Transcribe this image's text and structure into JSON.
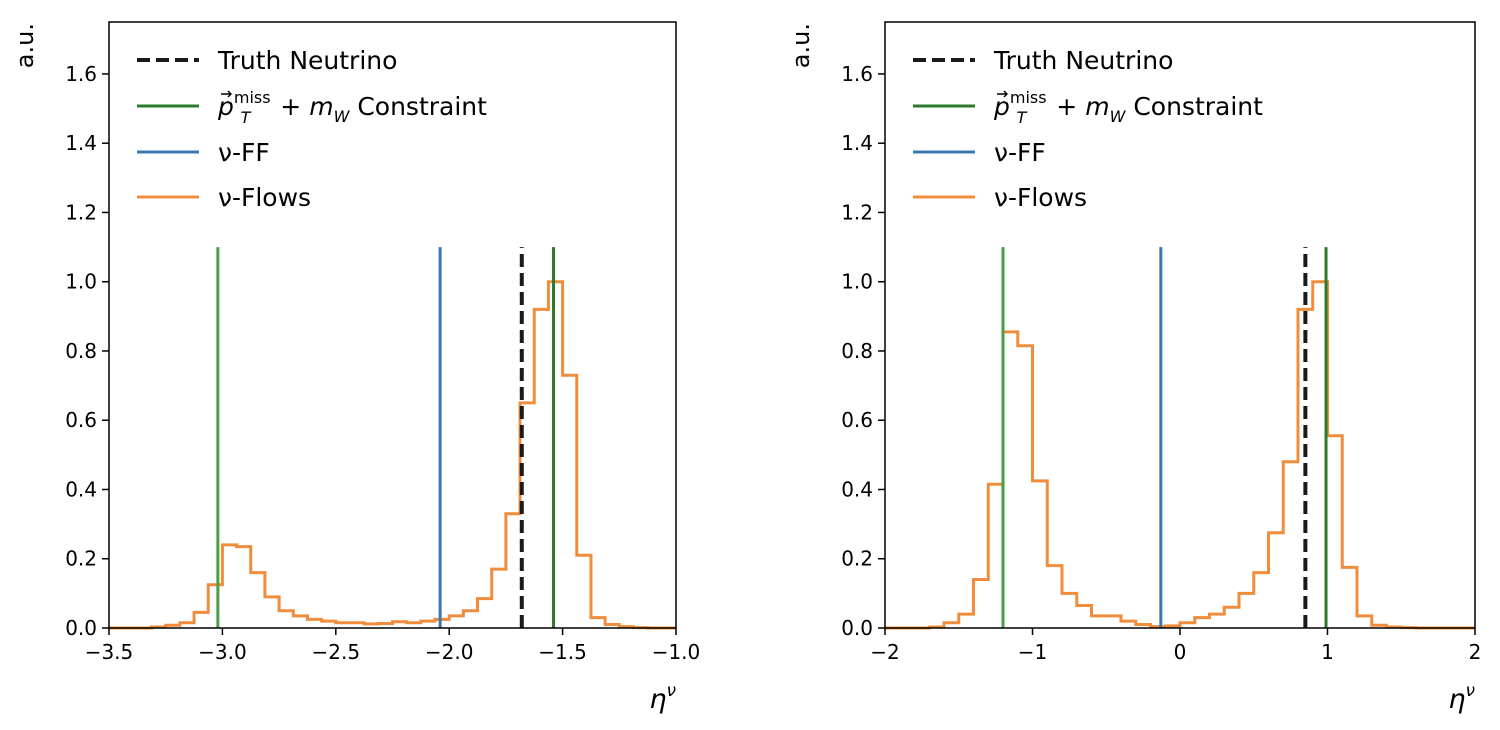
{
  "chart_data": [
    {
      "type": "line",
      "xlabel": "η",
      "xlabel_sup": "ν",
      "ylabel": "a.u.",
      "xlim": [
        -3.5,
        -1.0
      ],
      "ylim": [
        0,
        1.75
      ],
      "xticks": [
        -3.5,
        -3.0,
        -2.5,
        -2.0,
        -1.5,
        -1.0
      ],
      "xtick_labels": [
        "−3.5",
        "−3.0",
        "−2.5",
        "−2.0",
        "−1.5",
        "−1.0"
      ],
      "yticks": [
        0,
        0.2,
        0.4,
        0.6,
        0.8,
        1.0,
        1.2,
        1.4,
        1.6
      ],
      "ytick_labels": [
        "0.0",
        "0.2",
        "0.4",
        "0.6",
        "0.8",
        "1.0",
        "1.2",
        "1.4",
        "1.6"
      ],
      "legend_position": "top-left",
      "grid": false,
      "vlines": [
        {
          "legend_index": 1,
          "x": -3.02,
          "color": "#4a9e45",
          "ymax": 1.1
        },
        {
          "legend_index": 1,
          "x": -1.54,
          "color": "#2c7a2c",
          "ymax": 1.1
        },
        {
          "legend_index": 2,
          "x": -2.04,
          "color": "#3a78b0",
          "ymax": 1.1
        },
        {
          "legend_index": 0,
          "x": -1.68,
          "color": "#1a1a1a",
          "ymax": 1.1,
          "dashed": true
        }
      ],
      "histogram": {
        "legend_index": 3,
        "color": "#f08d3c",
        "bin_start": -3.5,
        "bin_width": 0.0625,
        "values": [
          0.0,
          0.0,
          0.0,
          0.003,
          0.008,
          0.015,
          0.045,
          0.125,
          0.24,
          0.235,
          0.16,
          0.09,
          0.05,
          0.035,
          0.025,
          0.02,
          0.015,
          0.015,
          0.012,
          0.013,
          0.018,
          0.015,
          0.02,
          0.025,
          0.035,
          0.05,
          0.085,
          0.17,
          0.33,
          0.65,
          0.92,
          1.0,
          0.73,
          0.21,
          0.03,
          0.01,
          0.004,
          0.001,
          0.0,
          0.0
        ]
      }
    },
    {
      "type": "line",
      "xlabel": "η",
      "xlabel_sup": "ν",
      "ylabel": "a.u.",
      "xlim": [
        -2,
        2
      ],
      "ylim": [
        0,
        1.75
      ],
      "xticks": [
        -2,
        -1,
        0,
        1,
        2
      ],
      "xtick_labels": [
        "−2",
        "−1",
        "0",
        "1",
        "2"
      ],
      "yticks": [
        0,
        0.2,
        0.4,
        0.6,
        0.8,
        1.0,
        1.2,
        1.4,
        1.6
      ],
      "ytick_labels": [
        "0.0",
        "0.2",
        "0.4",
        "0.6",
        "0.8",
        "1.0",
        "1.2",
        "1.4",
        "1.6"
      ],
      "legend_position": "top-left",
      "grid": false,
      "vlines": [
        {
          "legend_index": 1,
          "x": -1.2,
          "color": "#4a9e45",
          "ymax": 1.1
        },
        {
          "legend_index": 1,
          "x": 0.99,
          "color": "#2c7a2c",
          "ymax": 1.1
        },
        {
          "legend_index": 2,
          "x": -0.13,
          "color": "#3a78b0",
          "ymax": 1.1
        },
        {
          "legend_index": 0,
          "x": 0.85,
          "color": "#1a1a1a",
          "ymax": 1.1,
          "dashed": true
        }
      ],
      "histogram": {
        "legend_index": 3,
        "color": "#f08d3c",
        "bin_start": -2.0,
        "bin_width": 0.1,
        "values": [
          0.0,
          0.0,
          0.0,
          0.003,
          0.015,
          0.04,
          0.14,
          0.415,
          0.855,
          0.815,
          0.425,
          0.18,
          0.1,
          0.065,
          0.035,
          0.035,
          0.02,
          0.01,
          0.004,
          0.006,
          0.015,
          0.03,
          0.04,
          0.06,
          0.1,
          0.16,
          0.275,
          0.48,
          0.92,
          1.0,
          0.555,
          0.175,
          0.035,
          0.008,
          0.003,
          0.001,
          0.0,
          0.0,
          0.0,
          0.0
        ]
      }
    }
  ],
  "legend": [
    {
      "label": "Truth Neutrino",
      "color": "#1a1a1a",
      "dashed": true
    },
    {
      "label_prefix": "p",
      "label_sup": "miss",
      "label_sub": "T",
      "label_mid": " + m",
      "label_sub2": "W",
      "label_suffix": " Constraint",
      "color": "#2c7a2c"
    },
    {
      "label": "ν-FF",
      "color": "#3a78b0"
    },
    {
      "label": "ν-Flows",
      "color": "#f08d3c"
    }
  ]
}
